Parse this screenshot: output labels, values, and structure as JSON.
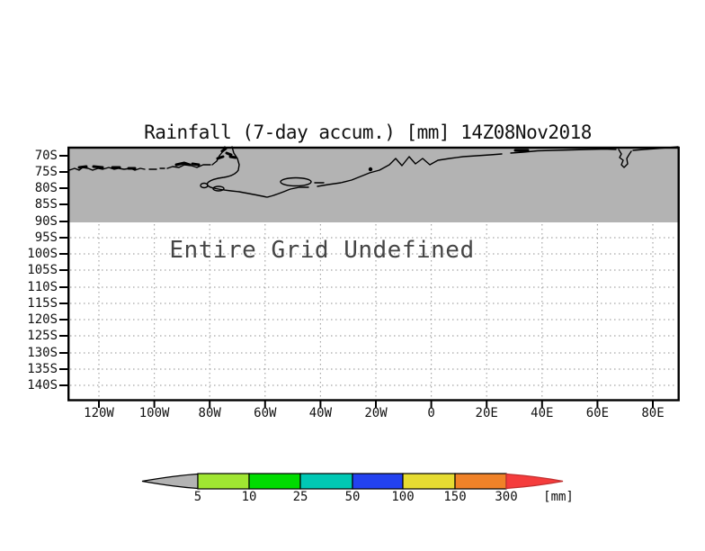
{
  "title": "Rainfall (7-day accum.) [mm] 14Z08Nov2018",
  "map": {
    "status_text": "Entire Grid Undefined",
    "shaded_region_color": "#B3B3B3",
    "coastline_color": "#000000",
    "grid_color": "#A6A6A6",
    "y_axis_ticks": [
      "70S",
      "75S",
      "80S",
      "85S",
      "90S",
      "95S",
      "100S",
      "105S",
      "110S",
      "115S",
      "120S",
      "125S",
      "130S",
      "135S",
      "140S"
    ],
    "x_axis_ticks": [
      "120W",
      "100W",
      "80W",
      "60W",
      "40W",
      "20W",
      "0",
      "20E",
      "40E",
      "60E",
      "80E"
    ]
  },
  "colorbar": {
    "unit_label": "[mm]",
    "tick_labels": [
      "5",
      "10",
      "25",
      "50",
      "100",
      "150",
      "300"
    ],
    "segments": [
      {
        "range": "< 5",
        "color": "#B3B3B3"
      },
      {
        "range": "5-10",
        "color": "#A0E632"
      },
      {
        "range": "10-25",
        "color": "#00DC00"
      },
      {
        "range": "25-50",
        "color": "#00C8B4"
      },
      {
        "range": "50-100",
        "color": "#2342F0"
      },
      {
        "range": "100-150",
        "color": "#E6DC32"
      },
      {
        "range": "150-300",
        "color": "#F08228"
      },
      {
        "range": "> 300",
        "color": "#F53C3C"
      }
    ]
  },
  "chart_data": {
    "type": "heatmap",
    "title": "Rainfall (7-day accum.) [mm] 14Z08Nov2018",
    "x_ticks": [
      "120W",
      "100W",
      "80W",
      "60W",
      "40W",
      "20W",
      "0",
      "20E",
      "40E",
      "60E",
      "80E"
    ],
    "y_ticks": [
      "70S",
      "75S",
      "80S",
      "85S",
      "90S",
      "95S",
      "100S",
      "105S",
      "110S",
      "115S",
      "120S",
      "125S",
      "130S",
      "135S",
      "140S"
    ],
    "values": "undefined (no data plotted)",
    "annotation": "Entire Grid Undefined",
    "legend_levels": [
      5,
      10,
      25,
      50,
      100,
      150,
      300
    ],
    "legend_unit": "mm",
    "grid": true,
    "legend_position": "bottom",
    "notes": "Gray shaded band from top of frame to 90S with black Antarctic coastline; dotted lat/lon graticule below 90S; all rainfall grid values undefined"
  }
}
